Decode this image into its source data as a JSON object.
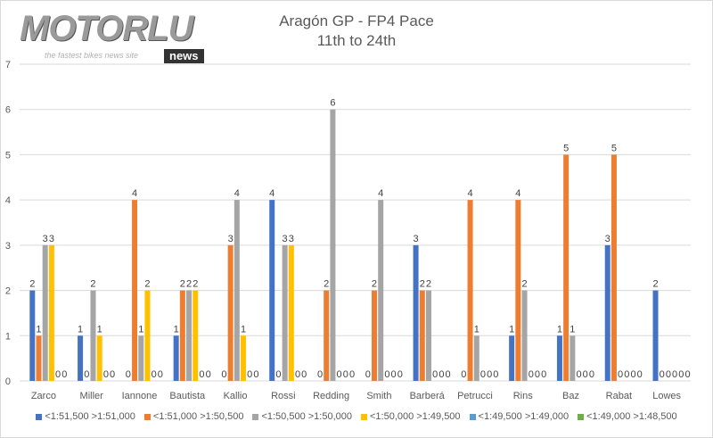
{
  "logo": {
    "name": "MOTORLU",
    "tagline": "the fastest bikes news site",
    "badge": "news"
  },
  "chart_data": {
    "type": "bar",
    "title": "Aragón GP - FP4 Pace",
    "subtitle": "11th to 24th",
    "xlabel": "",
    "ylabel": "",
    "ylim": [
      0,
      7
    ],
    "yticks": [
      0,
      1,
      2,
      3,
      4,
      5,
      6,
      7
    ],
    "grid": true,
    "legend_position": "bottom",
    "categories": [
      "Zarco",
      "Miller",
      "Iannone",
      "Bautista",
      "Kallio",
      "Rossi",
      "Redding",
      "Smith",
      "Barberá",
      "Petrucci",
      "Rins",
      "Baz",
      "Rabat",
      "Lowes"
    ],
    "series": [
      {
        "name": "<1:51,500 >1:51,000",
        "color": "#4472c4",
        "values": [
          2,
          1,
          0,
          1,
          0,
          4,
          0,
          0,
          3,
          0,
          1,
          1,
          3,
          2
        ]
      },
      {
        "name": "<1:51,000 >1:50,500",
        "color": "#ed7d31",
        "values": [
          1,
          0,
          4,
          2,
          3,
          0,
          2,
          2,
          2,
          4,
          4,
          5,
          5,
          0
        ]
      },
      {
        "name": "<1:50,500 >1:50,000",
        "color": "#a5a5a5",
        "values": [
          3,
          2,
          1,
          2,
          4,
          3,
          6,
          4,
          2,
          1,
          2,
          1,
          0,
          0
        ]
      },
      {
        "name": "<1:50,000 >1:49,500",
        "color": "#ffc000",
        "values": [
          3,
          1,
          2,
          2,
          1,
          3,
          0,
          0,
          0,
          0,
          0,
          0,
          0,
          0
        ]
      },
      {
        "name": "<1:49,500 >1:49,000",
        "color": "#5b9bd5",
        "values": [
          0,
          0,
          0,
          0,
          0,
          0,
          0,
          0,
          0,
          0,
          0,
          0,
          0,
          0
        ]
      },
      {
        "name": "<1:49,000 >1:48,500",
        "color": "#70ad47",
        "values": [
          0,
          0,
          0,
          0,
          0,
          0,
          0,
          0,
          0,
          0,
          0,
          0,
          0,
          0
        ]
      }
    ]
  }
}
